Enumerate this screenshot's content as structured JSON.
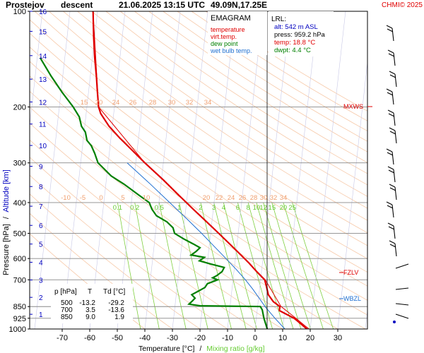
{
  "header": {
    "station": "Prostejov",
    "mode": "descent",
    "datetime": "21.06.2025 13:15 UTC",
    "coords": "49.09N,17.25E",
    "credit": "CHMI© 2025"
  },
  "legend": {
    "title": "EMAGRAM",
    "items": [
      {
        "label": "temperature",
        "color": "#e00000"
      },
      {
        "label": "virt.temp.",
        "color": "#e00000"
      },
      {
        "label": "dew point",
        "color": "#008000"
      },
      {
        "label": "wet bulb temp.",
        "color": "#1f6fd0"
      }
    ]
  },
  "lrl": {
    "title": "LRL:",
    "alt": "alt: 542 m ASL",
    "press": "press: 959.2 hPa",
    "temp": "temp: 18.8 °C",
    "dwpt": "dwpt: 4.4 °C"
  },
  "table": {
    "headers": [
      "p [hPa]",
      "T",
      "Td [°C]"
    ],
    "rows": [
      [
        "500",
        "-13.2",
        "-29.2"
      ],
      [
        "700",
        "3.5",
        "-13.6"
      ],
      [
        "850",
        "9.0",
        "1.9"
      ]
    ]
  },
  "levels": {
    "mxws": "MXWS",
    "fzlv": "FZLV",
    "wbzl": "WBZL"
  },
  "chart_data": {
    "type": "line",
    "title": "Prostejov descent 21.06.2025 13:15 UTC 49.09N,17.25E",
    "xlabel": "Temperature [°C]",
    "xlabel_sep": "/",
    "xlabel2": "Mixing ratio [g/kg]",
    "ylabel": "Pressure [hPa]",
    "ylabel_sep": "/",
    "ylabel2": "Altitude [km]",
    "x_ticks": [
      -70,
      -60,
      -50,
      -40,
      -30,
      -20,
      -10,
      0,
      10,
      20,
      30
    ],
    "y_ticks": [
      100,
      200,
      300,
      400,
      500,
      600,
      700,
      850,
      925,
      1000
    ],
    "y_scale": "log",
    "xlim": [
      -80,
      40
    ],
    "ylim": [
      1000,
      100
    ],
    "altitude_km_labels": [
      1,
      2,
      3,
      4,
      5,
      6,
      7,
      8,
      9,
      10,
      11,
      12,
      13,
      14,
      15,
      16
    ],
    "mixing_ratio_labels": [
      "0.1",
      "0.2",
      "0.5",
      "1",
      "2",
      "3",
      "4",
      "6",
      "8",
      "10",
      "12",
      "15",
      "20",
      "25"
    ],
    "dry_adiabat_labels_upper": [
      "15",
      "20",
      "24",
      "26",
      "28",
      "30",
      "32",
      "34"
    ],
    "dry_adiabat_labels_lower": [
      "-10",
      "-5",
      "0",
      "5",
      "10",
      "20",
      "22",
      "24",
      "26",
      "28",
      "30",
      "32",
      "34"
    ],
    "series": [
      {
        "name": "temperature",
        "color": "#e00000",
        "points": [
          [
            1000,
            18.8
          ],
          [
            970,
            17.0
          ],
          [
            925,
            14.2
          ],
          [
            900,
            11.5
          ],
          [
            875,
            8.8
          ],
          [
            850,
            9.0
          ],
          [
            820,
            6.6
          ],
          [
            780,
            4.8
          ],
          [
            740,
            4.2
          ],
          [
            700,
            3.5
          ],
          [
            660,
            0.6
          ],
          [
            620,
            -2.2
          ],
          [
            580,
            -5.6
          ],
          [
            540,
            -9.2
          ],
          [
            500,
            -13.2
          ],
          [
            460,
            -17.6
          ],
          [
            420,
            -22.4
          ],
          [
            380,
            -27.6
          ],
          [
            340,
            -33.2
          ],
          [
            300,
            -40.0
          ],
          [
            270,
            -45.3
          ],
          [
            250,
            -49.2
          ],
          [
            230,
            -53.0
          ],
          [
            210,
            -56.0
          ],
          [
            200,
            -56.8
          ],
          [
            180,
            -57.2
          ],
          [
            160,
            -57.6
          ],
          [
            140,
            -58.2
          ],
          [
            120,
            -58.6
          ],
          [
            100,
            -58.8
          ]
        ]
      },
      {
        "name": "virt.temp.",
        "color": "#e00000",
        "points": [
          [
            1000,
            19.5
          ],
          [
            925,
            14.8
          ],
          [
            850,
            9.4
          ],
          [
            700,
            3.7
          ],
          [
            500,
            -13.1
          ],
          [
            300,
            -40.0
          ],
          [
            200,
            -56.8
          ],
          [
            100,
            -58.8
          ]
        ]
      },
      {
        "name": "dew point",
        "color": "#008000",
        "points": [
          [
            1000,
            4.4
          ],
          [
            925,
            3.2
          ],
          [
            870,
            2.6
          ],
          [
            850,
            1.9
          ],
          [
            845,
            -20.0
          ],
          [
            835,
            -24.0
          ],
          [
            820,
            -23.0
          ],
          [
            800,
            -21.8
          ],
          [
            780,
            -23.0
          ],
          [
            760,
            -20.6
          ],
          [
            740,
            -18.2
          ],
          [
            720,
            -17.3
          ],
          [
            700,
            -13.6
          ],
          [
            690,
            -15.4
          ],
          [
            680,
            -14.0
          ],
          [
            660,
            -12.0
          ],
          [
            640,
            -11.2
          ],
          [
            625,
            -16.0
          ],
          [
            610,
            -20.2
          ],
          [
            595,
            -18.4
          ],
          [
            585,
            -23.2
          ],
          [
            570,
            -21.4
          ],
          [
            555,
            -20.0
          ],
          [
            540,
            -22.4
          ],
          [
            520,
            -26.0
          ],
          [
            500,
            -29.2
          ],
          [
            480,
            -29.8
          ],
          [
            460,
            -32.0
          ],
          [
            440,
            -35.8
          ],
          [
            420,
            -37.4
          ],
          [
            400,
            -38.4
          ],
          [
            380,
            -42.0
          ],
          [
            350,
            -47.6
          ],
          [
            330,
            -52.2
          ],
          [
            300,
            -57.0
          ],
          [
            280,
            -58.2
          ],
          [
            265,
            -59.4
          ],
          [
            255,
            -61.0
          ],
          [
            240,
            -61.6
          ],
          [
            230,
            -63.0
          ],
          [
            215,
            -63.8
          ],
          [
            200,
            -66.0
          ],
          [
            180,
            -70.0
          ],
          [
            160,
            -74.0
          ],
          [
            140,
            -78.0
          ]
        ]
      },
      {
        "name": "wet bulb temp.",
        "color": "#1f6fd0",
        "points": [
          [
            1000,
            10.8
          ],
          [
            925,
            7.2
          ],
          [
            850,
            3.6
          ],
          [
            800,
            1.5
          ],
          [
            750,
            -0.8
          ],
          [
            700,
            -3.5
          ],
          [
            650,
            -6.8
          ],
          [
            600,
            -10.6
          ],
          [
            550,
            -14.8
          ],
          [
            500,
            -19.4
          ],
          [
            450,
            -24.8
          ],
          [
            400,
            -31.0
          ],
          [
            350,
            -38.0
          ],
          [
            300,
            -46.4
          ]
        ]
      }
    ],
    "wind_barbs_present": true,
    "grid": true
  }
}
